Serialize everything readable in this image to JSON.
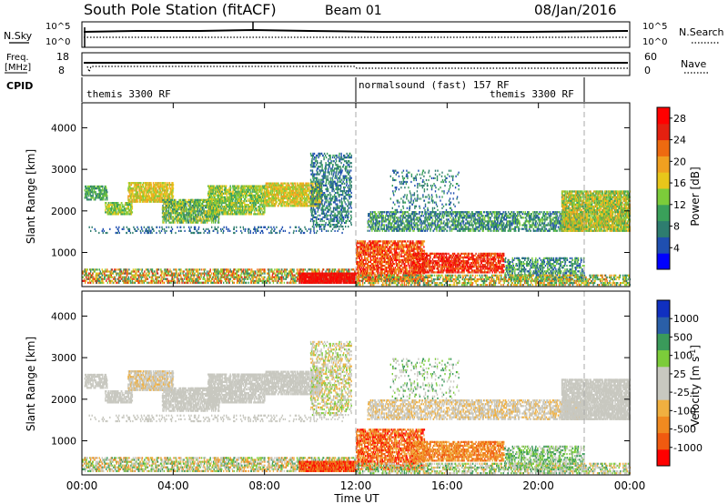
{
  "header": {
    "title": "South Pole Station (fitACF)",
    "beam": "Beam 01",
    "date": "08/Jan/2016"
  },
  "top_panels": {
    "nsky_label": "N.Sky",
    "nsearch_label": "N.Search",
    "nsky_ticks": [
      "10^5",
      "10^0"
    ],
    "nsearch_ticks": [
      "10^5",
      "10^0"
    ],
    "freq_label_line1": "Freq.",
    "freq_label_line2": "[MHz]",
    "freq_ticks": [
      "18",
      "8"
    ],
    "nave_label": "Nave",
    "nave_ticks": [
      "60",
      "0"
    ],
    "cpid_label": "CPID",
    "cpid_segments": [
      {
        "text": "themis 3300 RF",
        "start_h": 0,
        "end_h": 12
      },
      {
        "text": "normalsound (fast) 157 RF",
        "start_h": 12,
        "end_h": 22
      },
      {
        "text": "themis 3300 RF",
        "start_h": 16,
        "end_h": 22
      }
    ]
  },
  "colors": {
    "power_scale": [
      "#0000ff",
      "#1f4fb0",
      "#2e7d6f",
      "#3aa05a",
      "#7ccc3a",
      "#e8c61a",
      "#f0a020",
      "#ee6a10",
      "#e42010",
      "#ff0000"
    ],
    "velocity_scale": [
      "#ff0000",
      "#f05a10",
      "#f08a20",
      "#f0b040",
      "#c8c8c0",
      "#c8c8c0",
      "#7ccc3a",
      "#3a9a5a",
      "#2a5fa8",
      "#1030c0"
    ]
  },
  "chart_data": [
    {
      "type": "heatmap",
      "name_id": "power",
      "ylabel": "Slant Range [km]",
      "yticks": [
        1000,
        2000,
        3000,
        4000
      ],
      "ylim": [
        180,
        4600
      ],
      "xlim": [
        0,
        24
      ],
      "xticks": [
        "00:00",
        "04:00",
        "08:00",
        "12:00",
        "16:00",
        "20:00",
        "00:00"
      ],
      "colorbar": {
        "label": "Power [dB]",
        "ticks": [
          "4",
          "8",
          "12",
          "16",
          "20",
          "24",
          "28"
        ],
        "range": [
          0,
          30
        ]
      }
    },
    {
      "type": "heatmap",
      "name_id": "velocity",
      "ylabel": "Slant Range [km]",
      "yticks": [
        1000,
        2000,
        3000,
        4000
      ],
      "ylim": [
        180,
        4600
      ],
      "xlim": [
        0,
        24
      ],
      "xticks": [
        "00:00",
        "04:00",
        "08:00",
        "12:00",
        "16:00",
        "20:00",
        "00:00"
      ],
      "xlabel": "Time UT",
      "colorbar": {
        "label": "Velocity [m s^-1]",
        "ticks": [
          "1000",
          "500",
          "100",
          "25",
          "-25",
          "-100",
          "-500",
          "-1000"
        ]
      }
    }
  ]
}
